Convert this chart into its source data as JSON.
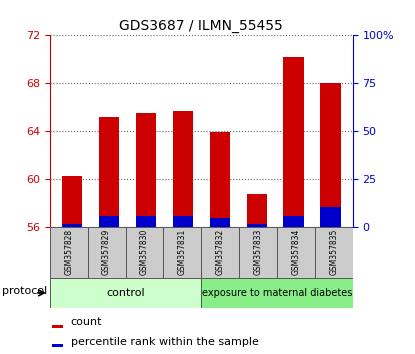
{
  "title": "GDS3687 / ILMN_55455",
  "samples": [
    "GSM357828",
    "GSM357829",
    "GSM357830",
    "GSM357831",
    "GSM357832",
    "GSM357833",
    "GSM357834",
    "GSM357835"
  ],
  "count_values": [
    60.2,
    65.2,
    65.5,
    65.7,
    63.9,
    58.7,
    70.2,
    68.0
  ],
  "percentile_values": [
    1.5,
    5.5,
    5.5,
    5.5,
    4.5,
    1.5,
    5.5,
    10.0
  ],
  "ylim_left": [
    56,
    72
  ],
  "ylim_right": [
    0,
    100
  ],
  "yticks_left": [
    56,
    60,
    64,
    68,
    72
  ],
  "yticks_right": [
    0,
    25,
    50,
    75,
    100
  ],
  "ytick_labels_right": [
    "0",
    "25",
    "50",
    "75",
    "100%"
  ],
  "left_axis_color": "#cc0000",
  "right_axis_color": "#0000cc",
  "bar_color_red": "#cc0000",
  "bar_color_blue": "#0000cc",
  "bar_width": 0.55,
  "control_label": "control",
  "treatment_label": "exposure to maternal diabetes",
  "protocol_label": "protocol",
  "legend_count": "count",
  "legend_percentile": "percentile rank within the sample",
  "control_bg": "#ccffcc",
  "treatment_bg": "#88ee88",
  "sample_bg": "#cccccc",
  "grid_style": "dotted",
  "grid_color": "#666666"
}
